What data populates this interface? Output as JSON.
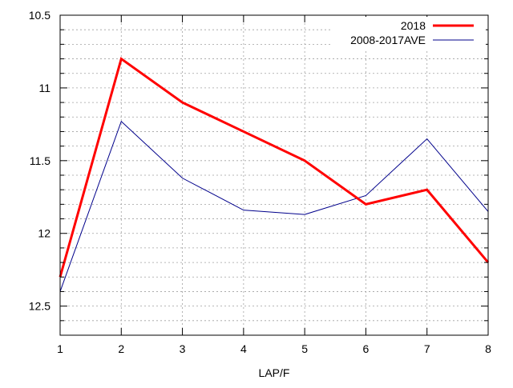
{
  "chart_data": {
    "type": "line",
    "title": "",
    "xlabel": "LAP/F",
    "ylabel": "",
    "x": [
      1,
      2,
      3,
      4,
      5,
      6,
      7,
      8
    ],
    "x_ticks": [
      "1",
      "2",
      "3",
      "4",
      "5",
      "6",
      "7",
      "8"
    ],
    "xlim": [
      1,
      8
    ],
    "y_ticks": [
      "10.5",
      "11",
      "11.5",
      "12",
      "12.5"
    ],
    "y_tick_values": [
      10.5,
      11,
      11.5,
      12,
      12.5
    ],
    "ylim": [
      10.5,
      12.7
    ],
    "y_inverted": true,
    "grid": "dotted",
    "legend_position": "top-right",
    "series": [
      {
        "name": "2018",
        "values": [
          12.3,
          10.8,
          11.1,
          11.3,
          11.5,
          11.8,
          11.7,
          12.2
        ],
        "color": "#ff0000",
        "style": "thick"
      },
      {
        "name": "2008-2017AVE",
        "values": [
          12.4,
          11.23,
          11.62,
          11.84,
          11.87,
          11.74,
          11.35,
          11.85
        ],
        "color": "#00008b",
        "style": "thin"
      }
    ]
  }
}
